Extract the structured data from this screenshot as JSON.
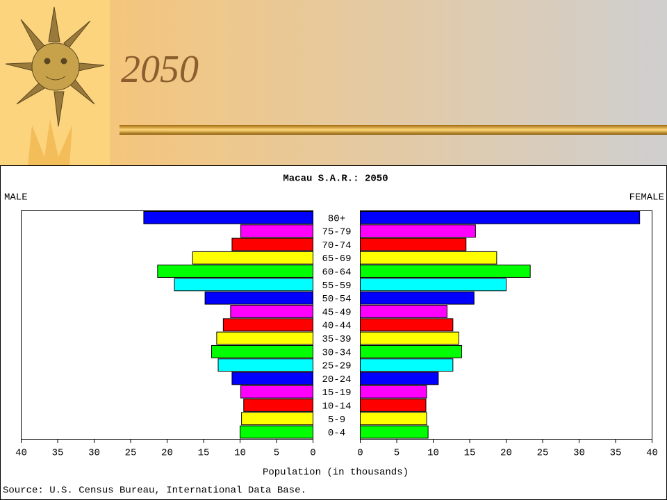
{
  "slide": {
    "title": "2050"
  },
  "chart_data": {
    "type": "pyramid",
    "title": "Macau S.A.R.: 2050",
    "categories": [
      "80+",
      "75-79",
      "70-74",
      "65-69",
      "60-64",
      "55-59",
      "50-54",
      "45-49",
      "40-44",
      "35-39",
      "30-34",
      "25-29",
      "20-24",
      "15-19",
      "10-14",
      "5-9",
      "0-4"
    ],
    "bar_colors": [
      "#0000ff",
      "#ff00ff",
      "#ff0000",
      "#ffff00",
      "#00ff00",
      "#00ffff",
      "#0000ff",
      "#ff00ff",
      "#ff0000",
      "#ffff00",
      "#00ff00",
      "#00ffff",
      "#0000ff",
      "#ff00ff",
      "#ff0000",
      "#ffff00",
      "#00ff00"
    ],
    "series": [
      {
        "name": "MALE",
        "values": [
          23.2,
          9.9,
          11.1,
          16.5,
          21.3,
          19.0,
          14.8,
          11.3,
          12.3,
          13.2,
          13.9,
          13.0,
          11.1,
          9.9,
          9.5,
          9.8,
          10.0
        ]
      },
      {
        "name": "FEMALE",
        "values": [
          38.3,
          15.8,
          14.5,
          18.7,
          23.3,
          20.0,
          15.6,
          11.9,
          12.7,
          13.5,
          13.9,
          12.7,
          10.7,
          9.1,
          9.0,
          9.1,
          9.3
        ]
      }
    ],
    "xlim": [
      0,
      40
    ],
    "xticks": [
      0,
      5,
      10,
      15,
      20,
      25,
      30,
      35,
      40
    ],
    "xlabel": "Population (in thousands)",
    "source": "Source: U.S. Census Bureau, International Data Base."
  }
}
